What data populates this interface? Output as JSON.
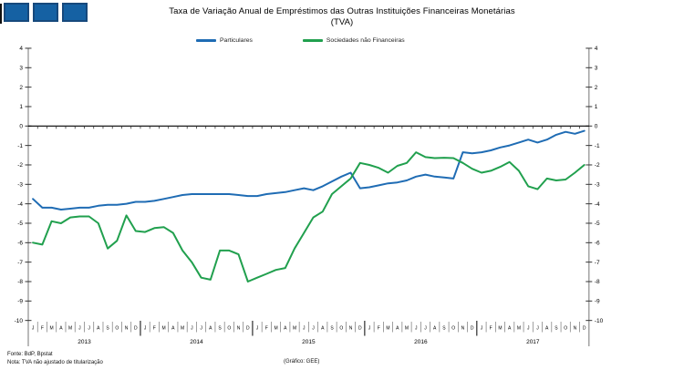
{
  "header": {
    "title_line1": "Taxa de Variação Anual de Empréstimos das Outras Instituições Financeiras Monetárias",
    "title_line2": "(TVA)",
    "logo_square_fill": "#1561a3",
    "logo_square_border": "#17497c",
    "logo_square_count": 3
  },
  "legend": [
    {
      "label": "Particulares",
      "color": "#1f6cb4"
    },
    {
      "label": "Sociedades não Financeiras",
      "color": "#21a04e"
    }
  ],
  "footer": {
    "source": "Fonte: BdP, Bpstat",
    "note": "Nota: TVA não ajustado de titularização",
    "credit": "(Gráfico: GEE)"
  },
  "colors": {
    "particulares": "#1f6cb4",
    "sociedades": "#21a04e",
    "axis_line": "#8c8c8c",
    "tick": "#333333",
    "zero_line": "#000000",
    "month_separator": "#777777",
    "year_separator": "#000000"
  },
  "chart_data": {
    "type": "line",
    "title": "Taxa de Variação Anual de Empréstimos das Outras Instituições Financeiras Monetárias (TVA)",
    "xlabel": "",
    "ylabel": "",
    "ylim": [
      -10,
      4
    ],
    "yticks": [
      4,
      3,
      2,
      1,
      0,
      -1,
      -2,
      -3,
      -4,
      -5,
      -6,
      -7,
      -8,
      -9,
      -10
    ],
    "grid": false,
    "legend_position": "top",
    "dual_y_axis": true,
    "years": [
      "2013",
      "2014",
      "2015",
      "2016",
      "2017"
    ],
    "month_letters": [
      "J",
      "F",
      "M",
      "A",
      "M",
      "J",
      "J",
      "A",
      "S",
      "O",
      "N",
      "D"
    ],
    "series": [
      {
        "name": "Particulares",
        "color": "#1f6cb4",
        "values": [
          -3.75,
          -4.2,
          -4.2,
          -4.3,
          -4.25,
          -4.2,
          -4.2,
          -4.1,
          -4.05,
          -4.05,
          -4.0,
          -3.9,
          -3.9,
          -3.85,
          -3.75,
          -3.65,
          -3.55,
          -3.5,
          -3.5,
          -3.5,
          -3.5,
          -3.5,
          -3.55,
          -3.6,
          -3.6,
          -3.5,
          -3.45,
          -3.4,
          -3.3,
          -3.2,
          -3.3,
          -3.1,
          -2.85,
          -2.6,
          -2.4,
          -3.2,
          -3.15,
          -3.05,
          -2.95,
          -2.9,
          -2.8,
          -2.6,
          -2.5,
          -2.6,
          -2.65,
          -2.7,
          -1.35,
          -1.4,
          -1.35,
          -1.25,
          -1.1,
          -1.0,
          -0.85,
          -0.7,
          -0.85,
          -0.7,
          -0.45,
          -0.3,
          -0.4,
          -0.25
        ]
      },
      {
        "name": "Sociedades não Financeiras",
        "color": "#21a04e",
        "values": [
          -6.0,
          -6.1,
          -4.9,
          -5.0,
          -4.7,
          -4.65,
          -4.65,
          -5.0,
          -6.3,
          -5.9,
          -4.6,
          -5.4,
          -5.45,
          -5.25,
          -5.2,
          -5.5,
          -6.4,
          -7.0,
          -7.8,
          -7.9,
          -6.4,
          -6.4,
          -6.6,
          -8.0,
          -7.8,
          -7.6,
          -7.4,
          -7.3,
          -6.3,
          -5.5,
          -4.7,
          -4.4,
          -3.5,
          -3.1,
          -2.7,
          -1.9,
          -2.0,
          -2.15,
          -2.4,
          -2.05,
          -1.9,
          -1.35,
          -1.6,
          -1.65,
          -1.63,
          -1.65,
          -1.9,
          -2.2,
          -2.4,
          -2.3,
          -2.1,
          -1.85,
          -2.3,
          -3.1,
          -3.25,
          -2.7,
          -2.8,
          -2.75,
          -2.4,
          -2.0
        ]
      }
    ]
  }
}
